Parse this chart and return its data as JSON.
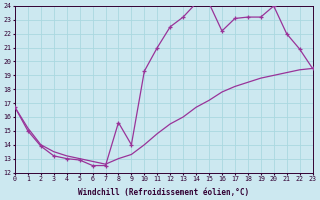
{
  "xlabel": "Windchill (Refroidissement éolien,°C)",
  "bg_color": "#cce8f0",
  "line_color": "#993399",
  "grid_color": "#aad8e0",
  "xmin": 0,
  "xmax": 23,
  "ymin": 12,
  "ymax": 24,
  "series1_x": [
    0,
    1,
    2,
    3,
    4,
    5,
    6,
    7,
    8,
    9,
    10,
    11,
    12,
    13,
    14,
    15,
    16,
    17,
    18,
    19,
    20,
    21,
    22,
    23
  ],
  "series1_y": [
    16.7,
    15.0,
    13.9,
    13.2,
    13.0,
    12.9,
    12.5,
    12.5,
    15.6,
    14.0,
    19.3,
    21.0,
    22.5,
    23.2,
    24.2,
    24.2,
    22.2,
    23.1,
    23.2,
    23.2,
    24.0,
    22.0,
    20.9,
    19.5
  ],
  "series2_x": [
    0,
    1,
    2,
    3,
    4,
    5,
    6,
    7,
    8,
    9,
    10,
    11,
    12,
    13,
    14,
    15,
    16,
    17,
    18,
    19,
    20,
    21,
    22,
    23
  ],
  "series2_y": [
    16.7,
    15.2,
    14.0,
    13.5,
    13.2,
    13.0,
    12.8,
    12.6,
    13.0,
    13.3,
    14.0,
    14.8,
    15.5,
    16.0,
    16.7,
    17.2,
    17.8,
    18.2,
    18.5,
    18.8,
    19.0,
    19.2,
    19.4,
    19.5
  ]
}
